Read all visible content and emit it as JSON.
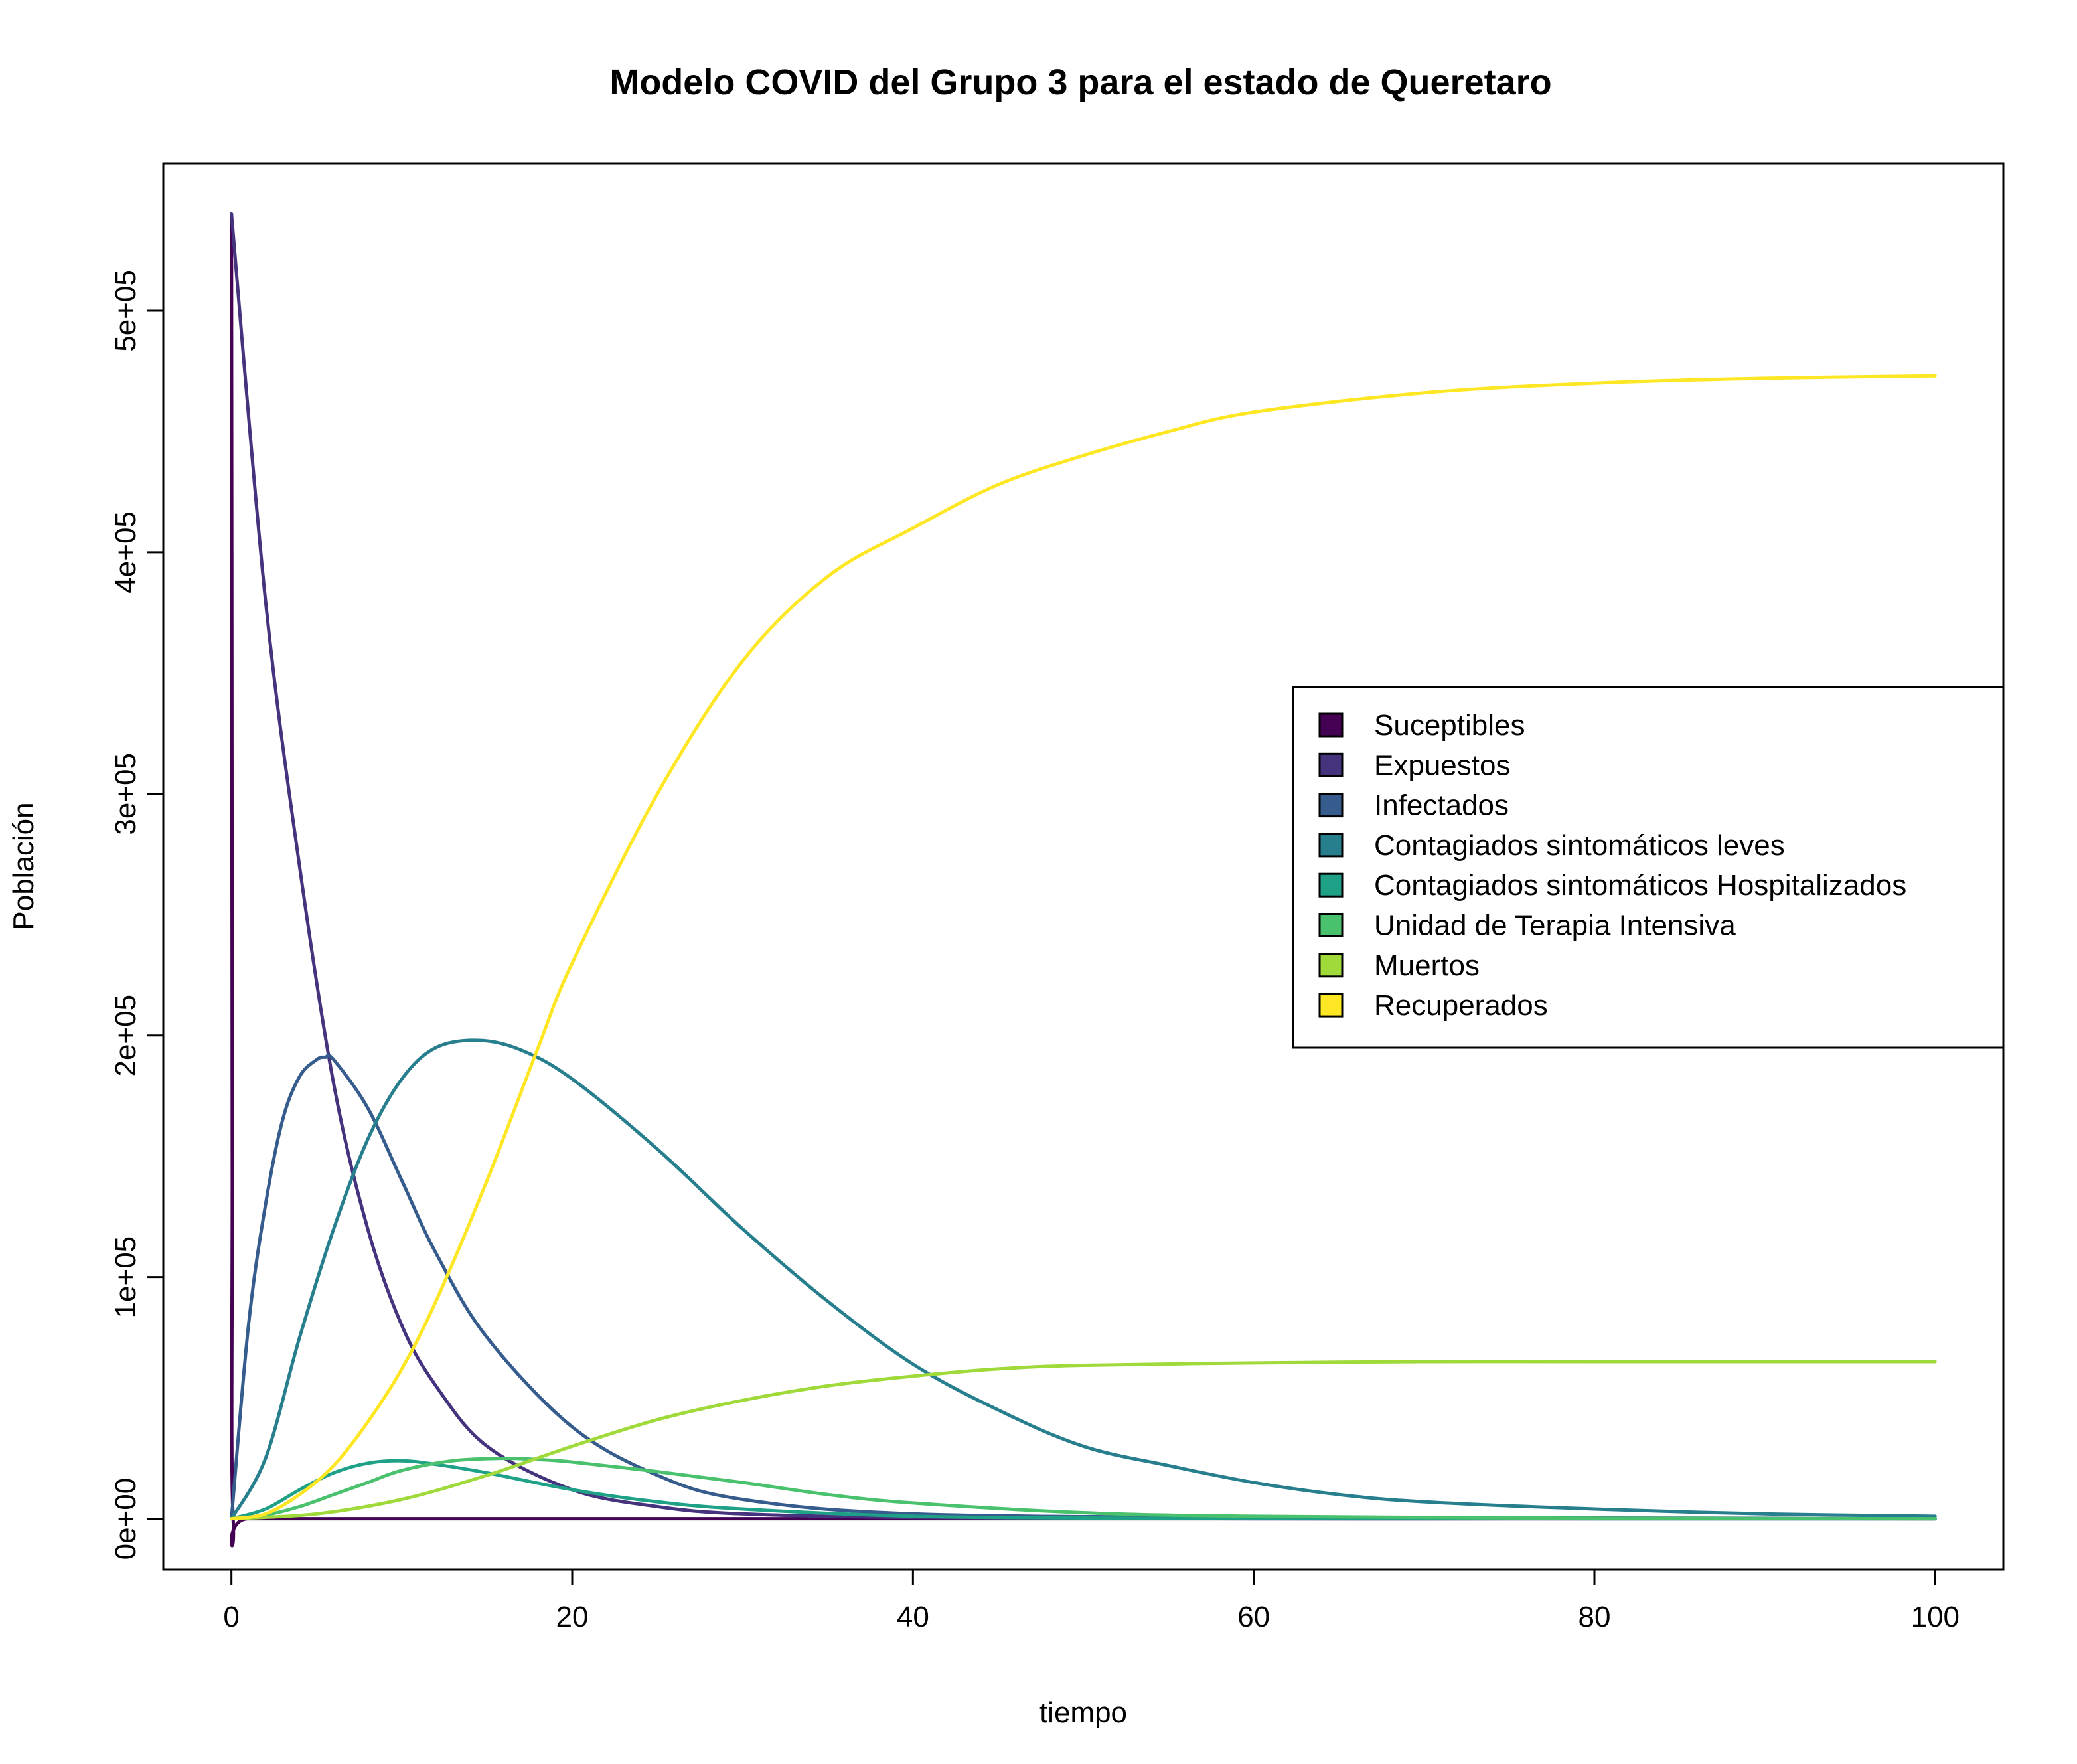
{
  "chart_data": {
    "type": "line",
    "title": "Modelo COVID del Grupo 3 para el estado de Queretaro",
    "xlabel": "tiempo",
    "ylabel": "Población",
    "xlim": [
      -4,
      104
    ],
    "ylim": [
      -21000,
      561000
    ],
    "x_ticks": [
      0,
      20,
      40,
      60,
      80,
      100
    ],
    "x_tick_labels": [
      "0",
      "20",
      "40",
      "60",
      "80",
      "100"
    ],
    "y_ticks": [
      0,
      100000,
      200000,
      300000,
      400000,
      500000
    ],
    "y_tick_labels": [
      "0e+00",
      "1e+05",
      "2e+05",
      "3e+05",
      "4e+05",
      "5e+05"
    ],
    "grid": false,
    "legend_position": "right",
    "series": [
      {
        "name": "Suceptibles",
        "color": "#440154",
        "x": [
          0,
          0.02,
          0.05,
          0.1,
          1,
          10,
          20,
          50,
          100
        ],
        "y": [
          540000,
          400000,
          150000,
          0,
          0,
          0,
          0,
          0,
          0
        ]
      },
      {
        "name": "Expuestos",
        "color": "#46337E",
        "x": [
          0,
          2,
          4,
          6,
          8,
          10,
          12,
          15,
          20,
          25,
          30,
          40,
          60,
          80,
          100
        ],
        "y": [
          540000,
          380000,
          270000,
          180000,
          120000,
          80000,
          55000,
          30000,
          12000,
          5000,
          2000,
          500,
          0,
          0,
          0
        ]
      },
      {
        "name": "Infectados",
        "color": "#365C8D",
        "x": [
          0,
          1,
          2,
          3,
          4,
          5,
          5.5,
          6,
          8,
          10,
          12,
          15,
          20,
          25,
          30,
          40,
          60,
          80,
          100
        ],
        "y": [
          0,
          80000,
          130000,
          165000,
          183000,
          190000,
          191000,
          190000,
          170000,
          140000,
          110000,
          75000,
          38000,
          18000,
          8000,
          2000,
          500,
          300,
          0
        ]
      },
      {
        "name": "Contagiados sintomáticos leves",
        "color": "#277F8E",
        "x": [
          0,
          2,
          4,
          6,
          8,
          10,
          12,
          14.5,
          17,
          20,
          25,
          30,
          35,
          40,
          45,
          50,
          55,
          60,
          65,
          70,
          80,
          90,
          100
        ],
        "y": [
          0,
          25000,
          75000,
          120000,
          157000,
          182000,
          195000,
          198000,
          194000,
          182000,
          153000,
          120000,
          90000,
          64000,
          45000,
          30000,
          22000,
          15000,
          10000,
          7000,
          4000,
          2000,
          1000
        ]
      },
      {
        "name": "Contagiados sintomáticos Hospitalizados",
        "color": "#1FA187",
        "x": [
          0,
          2,
          4,
          6,
          8,
          10,
          12,
          15,
          20,
          25,
          30,
          40,
          50,
          60,
          80,
          100
        ],
        "y": [
          0,
          4000,
          12000,
          19000,
          23000,
          24000,
          22500,
          19000,
          12000,
          7000,
          4000,
          1000,
          300,
          100,
          0,
          0
        ]
      },
      {
        "name": "Unidad de Terapia Intensiva",
        "color": "#4AC16D",
        "x": [
          0,
          2,
          4,
          6,
          8,
          10,
          13,
          16,
          18,
          20,
          25,
          30,
          35,
          40,
          50,
          60,
          80,
          100
        ],
        "y": [
          0,
          1500,
          5000,
          10000,
          15000,
          20000,
          24000,
          25000,
          24500,
          23500,
          19500,
          15000,
          10000,
          6500,
          2500,
          1000,
          200,
          0
        ]
      },
      {
        "name": "Muertos",
        "color": "#9FDA3A",
        "x": [
          0,
          5,
          10,
          15,
          20,
          25,
          30,
          35,
          40,
          45,
          50,
          60,
          70,
          80,
          100
        ],
        "y": [
          0,
          2000,
          8000,
          18000,
          30000,
          41000,
          49000,
          55000,
          59000,
          62000,
          63500,
          64500,
          65000,
          65000,
          65000
        ]
      },
      {
        "name": "Recuperados",
        "color": "#FDE725",
        "x": [
          0,
          2,
          4,
          6,
          8,
          10,
          12,
          15,
          18,
          20,
          25,
          30,
          35,
          40,
          45,
          50,
          55,
          60,
          70,
          80,
          90,
          100
        ],
        "y": [
          0,
          2000,
          10000,
          22000,
          40000,
          62000,
          90000,
          140000,
          195000,
          230000,
          300000,
          355000,
          390000,
          410000,
          428000,
          440000,
          450000,
          458000,
          466000,
          470000,
          472000,
          473000
        ]
      }
    ]
  }
}
